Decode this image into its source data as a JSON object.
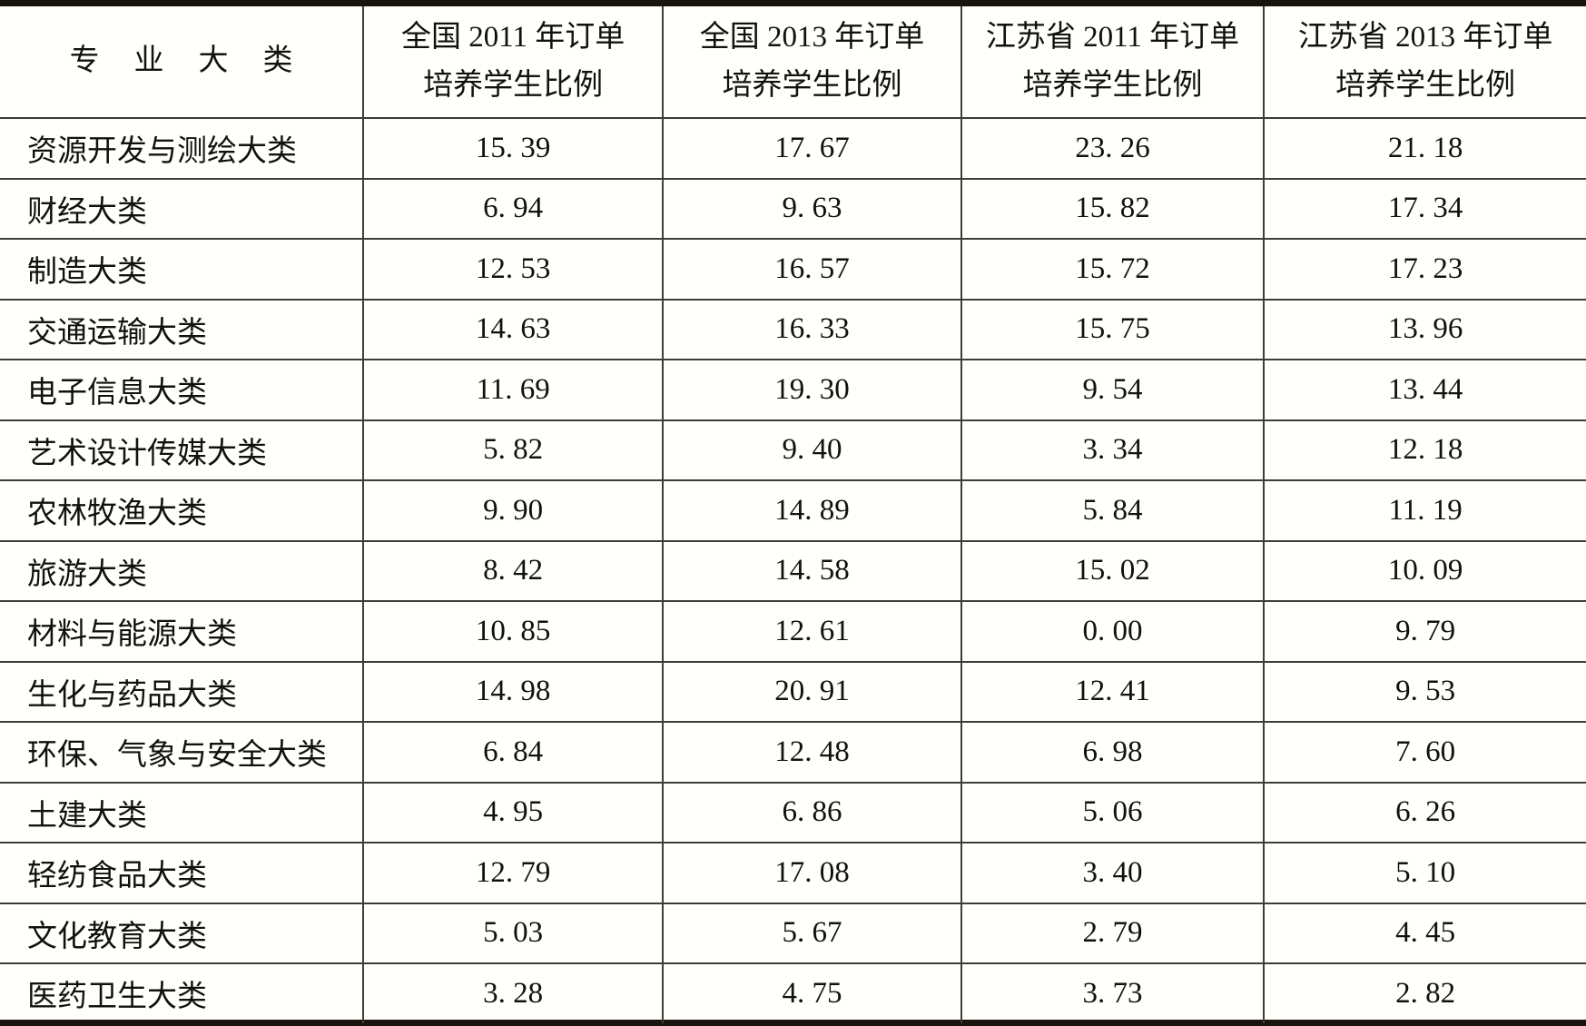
{
  "table": {
    "headers": [
      {
        "lines": [
          "专 业 大 类"
        ]
      },
      {
        "lines": [
          "全国 2011 年订单",
          "培养学生比例"
        ]
      },
      {
        "lines": [
          "全国 2013 年订单",
          "培养学生比例"
        ]
      },
      {
        "lines": [
          "江苏省 2011 年订单",
          "培养学生比例"
        ]
      },
      {
        "lines": [
          "江苏省 2013 年订单",
          "培养学生比例"
        ]
      }
    ],
    "rows": [
      {
        "label": "资源开发与测绘大类",
        "values": [
          "15. 39",
          "17. 67",
          "23. 26",
          "21. 18"
        ]
      },
      {
        "label": "财经大类",
        "values": [
          "6. 94",
          "9. 63",
          "15. 82",
          "17. 34"
        ]
      },
      {
        "label": "制造大类",
        "values": [
          "12. 53",
          "16. 57",
          "15. 72",
          "17. 23"
        ]
      },
      {
        "label": "交通运输大类",
        "values": [
          "14. 63",
          "16. 33",
          "15. 75",
          "13. 96"
        ]
      },
      {
        "label": "电子信息大类",
        "values": [
          "11. 69",
          "19. 30",
          "9. 54",
          "13. 44"
        ]
      },
      {
        "label": "艺术设计传媒大类",
        "values": [
          "5. 82",
          "9. 40",
          "3. 34",
          "12. 18"
        ]
      },
      {
        "label": "农林牧渔大类",
        "values": [
          "9. 90",
          "14. 89",
          "5. 84",
          "11. 19"
        ]
      },
      {
        "label": "旅游大类",
        "values": [
          "8. 42",
          "14. 58",
          "15. 02",
          "10. 09"
        ]
      },
      {
        "label": "材料与能源大类",
        "values": [
          "10. 85",
          "12. 61",
          "0. 00",
          "9. 79"
        ]
      },
      {
        "label": "生化与药品大类",
        "values": [
          "14. 98",
          "20. 91",
          "12. 41",
          "9. 53"
        ]
      },
      {
        "label": "环保、气象与安全大类",
        "values": [
          "6. 84",
          "12. 48",
          "6. 98",
          "7. 60"
        ]
      },
      {
        "label": "土建大类",
        "values": [
          "4. 95",
          "6. 86",
          "5. 06",
          "6. 26"
        ]
      },
      {
        "label": "轻纺食品大类",
        "values": [
          "12. 79",
          "17. 08",
          "3. 40",
          "5. 10"
        ]
      },
      {
        "label": "文化教育大类",
        "values": [
          "5. 03",
          "5. 67",
          "2. 79",
          "4. 45"
        ]
      },
      {
        "label": "医药卫生大类",
        "values": [
          "3. 28",
          "4. 75",
          "3. 73",
          "2. 82"
        ]
      }
    ]
  },
  "chart_data": {
    "type": "table",
    "title": "",
    "categories": [
      "资源开发与测绘大类",
      "财经大类",
      "制造大类",
      "交通运输大类",
      "电子信息大类",
      "艺术设计传媒大类",
      "农林牧渔大类",
      "旅游大类",
      "材料与能源大类",
      "生化与药品大类",
      "环保、气象与安全大类",
      "土建大类",
      "轻纺食品大类",
      "文化教育大类",
      "医药卫生大类"
    ],
    "series": [
      {
        "name": "全国 2011 年订单培养学生比例",
        "values": [
          15.39,
          6.94,
          12.53,
          14.63,
          11.69,
          5.82,
          9.9,
          8.42,
          10.85,
          14.98,
          6.84,
          4.95,
          12.79,
          5.03,
          3.28
        ]
      },
      {
        "name": "全国 2013 年订单培养学生比例",
        "values": [
          17.67,
          9.63,
          16.57,
          16.33,
          19.3,
          9.4,
          14.89,
          14.58,
          12.61,
          20.91,
          12.48,
          6.86,
          17.08,
          5.67,
          4.75
        ]
      },
      {
        "name": "江苏省 2011 年订单培养学生比例",
        "values": [
          23.26,
          15.82,
          15.72,
          15.75,
          9.54,
          3.34,
          5.84,
          15.02,
          0.0,
          12.41,
          6.98,
          5.06,
          3.4,
          2.79,
          3.73
        ]
      },
      {
        "name": "江苏省 2013 年订单培养学生比例",
        "values": [
          21.18,
          17.34,
          17.23,
          13.96,
          13.44,
          12.18,
          11.19,
          10.09,
          9.79,
          9.53,
          7.6,
          6.26,
          5.1,
          4.45,
          2.82
        ]
      }
    ]
  },
  "colors": {
    "page_background": "#fffffc",
    "thick_border": "#17140d",
    "thin_rule": "#3e3c33",
    "text": "#111110"
  }
}
